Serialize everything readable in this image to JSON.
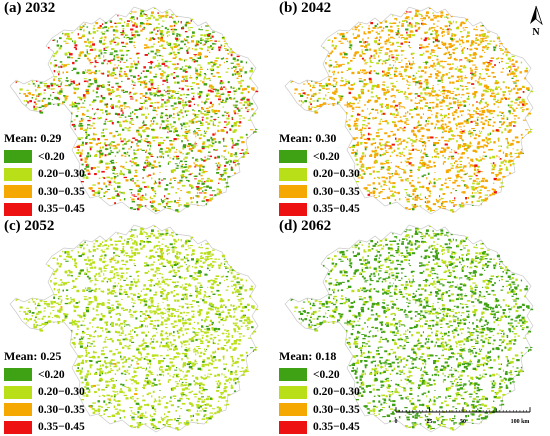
{
  "legend_classes": [
    {
      "label": "<0.20",
      "color": "#3fa214"
    },
    {
      "label": "0.20−0.30",
      "color": "#b8df18"
    },
    {
      "label": "0.30−0.35",
      "color": "#f6a802"
    },
    {
      "label": "0.35−0.45",
      "color": "#ee1111"
    }
  ],
  "panels": [
    {
      "title": "(a) 2032",
      "mean_text": "Mean: 0.29",
      "mix": [
        0.28,
        0.34,
        0.24,
        0.14
      ]
    },
    {
      "title": "(b) 2042",
      "mean_text": "Mean: 0.30",
      "mix": [
        0.07,
        0.23,
        0.66,
        0.04
      ]
    },
    {
      "title": "(c) 2052",
      "mean_text": "Mean: 0.25",
      "mix": [
        0.14,
        0.85,
        0.01,
        0.0
      ]
    },
    {
      "title": "(d) 2062",
      "mean_text": "Mean: 0.18",
      "mix": [
        0.62,
        0.38,
        0.0,
        0.0
      ]
    }
  ],
  "north_label": "N",
  "scale_bar": {
    "ticks": [
      "0",
      "25",
      "50",
      "100 km"
    ],
    "tick_values": [
      0,
      25,
      50,
      100
    ]
  }
}
